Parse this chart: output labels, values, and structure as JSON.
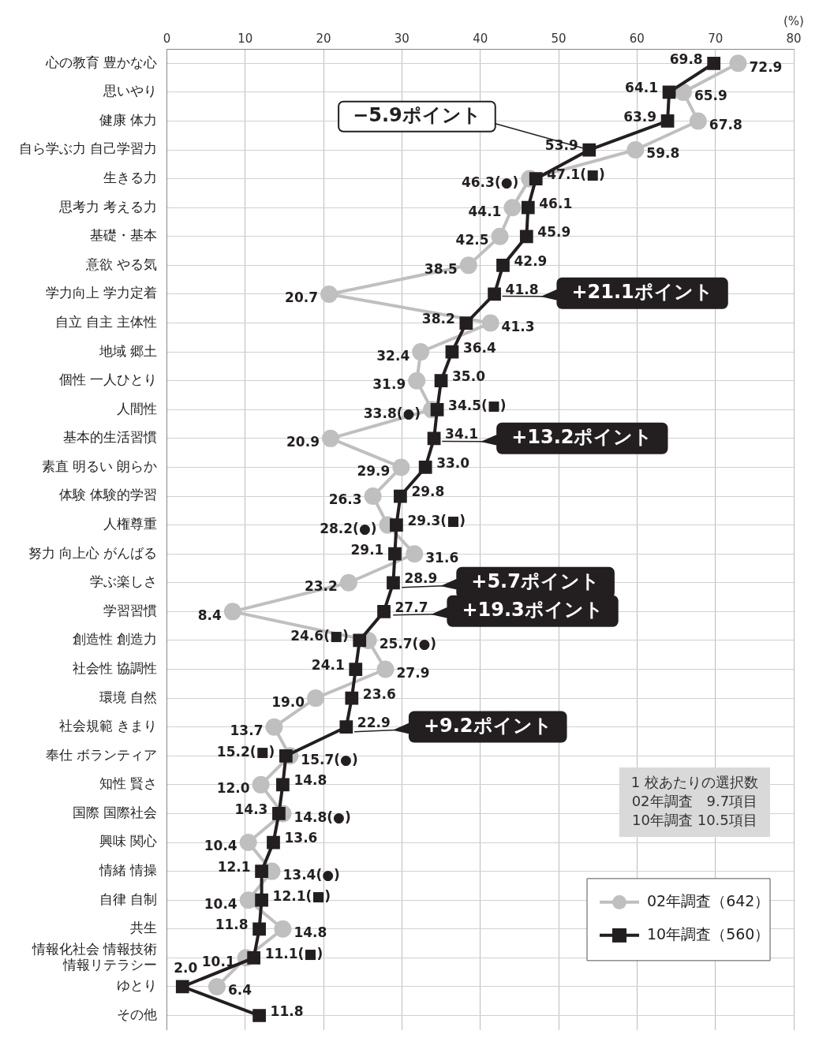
{
  "chart_data": {
    "type": "line",
    "orientation": "horizontal",
    "xlabel": "(%)",
    "categories": [
      "心の教育 豊かな心",
      "思いやり",
      "健康 体力",
      "自ら学ぶ力 自己学習力",
      "生きる力",
      "思考力 考える力",
      "基礎・基本",
      "意欲 やる気",
      "学力向上 学力定着",
      "自立 自主 主体性",
      "地域 郷土",
      "個性 一人ひとり",
      "人間性",
      "基本的生活習慣",
      "素直 明るい 朗らか",
      "体験 体験的学習",
      "人権尊重",
      "努力 向上心 がんばる",
      "学ぶ楽しさ",
      "学習習慣",
      "創造性 創造力",
      "社会性 協調性",
      "環境 自然",
      "社会規範 きまり",
      "奉仕 ボランティア",
      "知性 賢さ",
      "国際 国際社会",
      "興味 関心",
      "情緒 情操",
      "自律 自制",
      "共生",
      "情報化社会 情報技術情報リテラシー",
      "ゆとり",
      "その他"
    ],
    "series": [
      {
        "name": "02年調査（642）",
        "color": "#bfbfbf",
        "marker": "circle",
        "values": [
          72.9,
          65.9,
          67.8,
          59.8,
          46.3,
          44.1,
          42.5,
          38.5,
          20.7,
          41.3,
          32.4,
          31.9,
          33.8,
          20.9,
          29.9,
          26.3,
          28.2,
          31.6,
          23.2,
          8.4,
          25.7,
          27.9,
          19.0,
          13.7,
          15.7,
          12.0,
          14.8,
          10.4,
          13.4,
          10.4,
          14.8,
          10.1,
          6.4,
          null
        ],
        "value_labels": [
          "72.9",
          "65.9",
          "67.8",
          "59.8",
          "46.3(●)",
          "44.1",
          "42.5",
          "38.5",
          "20.7",
          "41.3",
          "32.4",
          "31.9",
          "33.8(●)",
          "20.9",
          "29.9",
          "26.3",
          "28.2(●)",
          "31.6",
          "23.2",
          "8.4",
          "25.7(●)",
          "27.9",
          "19.0",
          "13.7",
          "15.7(●)",
          "12.0",
          "14.8(●)",
          "10.4",
          "13.4(●)",
          "10.4",
          "14.8",
          "10.1",
          "6.4",
          null
        ]
      },
      {
        "name": "10年調査（560）",
        "color": "#231f20",
        "marker": "square",
        "values": [
          69.8,
          64.1,
          63.9,
          53.9,
          47.1,
          46.1,
          45.9,
          42.9,
          41.8,
          38.2,
          36.4,
          35.0,
          34.5,
          34.1,
          33.0,
          29.8,
          29.3,
          29.1,
          28.9,
          27.7,
          24.6,
          24.1,
          23.6,
          22.9,
          15.2,
          14.8,
          14.3,
          13.6,
          12.1,
          12.1,
          11.8,
          11.1,
          2.0,
          11.8
        ],
        "value_labels": [
          "69.8",
          "64.1",
          "63.9",
          "53.9",
          "47.1(■)",
          "46.1",
          "45.9",
          "42.9",
          "41.8",
          "38.2",
          "36.4",
          "35.0",
          "34.5(■)",
          "34.1",
          "33.0",
          "29.8",
          "29.3(■)",
          "29.1",
          "28.9",
          "27.7",
          "24.6(■)",
          "24.1",
          "23.6",
          "22.9",
          "15.2(■)",
          "14.8",
          "14.3",
          "13.6",
          "12.1",
          "12.1(■)",
          "11.8",
          "11.1(■)",
          "2.0",
          "11.8"
        ]
      }
    ],
    "xlim": [
      0,
      80
    ],
    "xticks": [
      0,
      10,
      20,
      30,
      40,
      50,
      60,
      70,
      80
    ],
    "grid": true,
    "legend": "bottom right",
    "line_style": "solid",
    "annotations": [
      {
        "text": "−5.9ポイント",
        "x": 53.9,
        "y": "自ら学ぶ力 自己学習力"
      },
      "+21.1ポイント",
      "+13.2ポイント",
      "+5.7ポイント",
      "+19.3ポイント",
      "+9.2ポイント",
      "1 校あたりの選択数\n02年調査　9.7項目\n10年調査 10.5項目"
    ]
  }
}
